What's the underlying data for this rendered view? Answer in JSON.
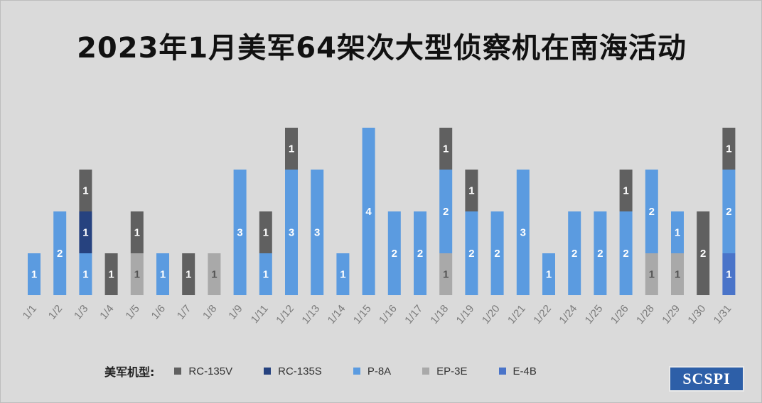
{
  "chart_data": {
    "type": "bar",
    "stacked": true,
    "title": "2023年1月美军64架次大型侦察机在南海活动",
    "categories": [
      "1/1",
      "1/2",
      "1/3",
      "1/4",
      "1/5",
      "1/6",
      "1/7",
      "1/8",
      "1/9",
      "1/11",
      "1/12",
      "1/13",
      "1/14",
      "1/15",
      "1/16",
      "1/17",
      "1/18",
      "1/19",
      "1/20",
      "1/21",
      "1/22",
      "1/24",
      "1/25",
      "1/26",
      "1/28",
      "1/29",
      "1/30",
      "1/31"
    ],
    "series": [
      {
        "name": "E-4B",
        "color": "#4a74c9",
        "values": [
          0,
          0,
          0,
          0,
          0,
          0,
          0,
          0,
          0,
          0,
          0,
          0,
          0,
          0,
          0,
          0,
          0,
          0,
          0,
          0,
          0,
          0,
          0,
          0,
          0,
          0,
          0,
          1
        ]
      },
      {
        "name": "EP-3E",
        "color": "#a9a9a9",
        "values": [
          0,
          0,
          0,
          0,
          1,
          0,
          0,
          1,
          0,
          0,
          0,
          0,
          0,
          0,
          0,
          0,
          1,
          0,
          0,
          0,
          0,
          0,
          0,
          0,
          1,
          1,
          0,
          0
        ]
      },
      {
        "name": "P-8A",
        "color": "#5b9be0",
        "values": [
          1,
          2,
          1,
          0,
          0,
          1,
          0,
          0,
          3,
          1,
          3,
          3,
          1,
          4,
          2,
          2,
          2,
          2,
          2,
          3,
          1,
          2,
          2,
          2,
          2,
          1,
          0,
          2
        ]
      },
      {
        "name": "RC-135S",
        "color": "#26427f",
        "values": [
          0,
          0,
          1,
          0,
          0,
          0,
          0,
          0,
          0,
          0,
          0,
          0,
          0,
          0,
          0,
          0,
          0,
          0,
          0,
          0,
          0,
          0,
          0,
          0,
          0,
          0,
          0,
          0
        ]
      },
      {
        "name": "RC-135V",
        "color": "#606060",
        "values": [
          0,
          0,
          1,
          1,
          1,
          0,
          1,
          0,
          0,
          1,
          1,
          0,
          0,
          0,
          0,
          0,
          1,
          1,
          0,
          0,
          0,
          0,
          0,
          1,
          0,
          0,
          2,
          1
        ]
      }
    ],
    "ylim": [
      0,
      4
    ],
    "grid": false,
    "legend_position": "bottom-left"
  },
  "legend": {
    "title": "美军机型:",
    "items": [
      {
        "label": "RC-135V",
        "color": "#606060",
        "icon": "square"
      },
      {
        "label": "RC-135S",
        "color": "#26427f",
        "icon": "square"
      },
      {
        "label": "P-8A",
        "color": "#5b9be0",
        "icon": "square"
      },
      {
        "label": "EP-3E",
        "color": "#a9a9a9",
        "icon": "square"
      },
      {
        "label": "E-4B",
        "color": "#4a74c9",
        "icon": "square"
      }
    ]
  },
  "logo": {
    "text": "SCSPI"
  }
}
